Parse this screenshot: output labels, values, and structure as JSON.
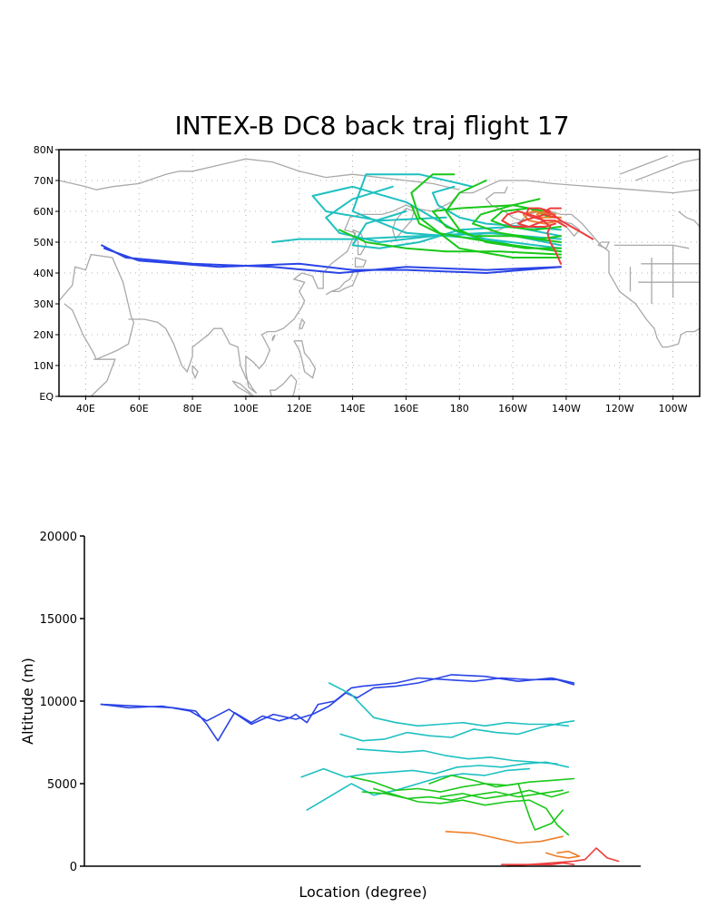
{
  "title": "INTEX-B DC8 back traj flight 17",
  "colors": {
    "land": "#a9a9a9",
    "grid": "#9a9a9a",
    "axis": "#000000",
    "blue": "#2a44e6",
    "cyan": "#1fc0c0",
    "green": "#19c819",
    "orange": "#ee7f2a",
    "red": "#ee3c3c"
  },
  "chart_data": [
    {
      "type": "line",
      "subtype": "map",
      "x_ticks": [
        "40E",
        "60E",
        "80E",
        "100E",
        "120E",
        "140E",
        "160E",
        "180",
        "160W",
        "140W",
        "120W",
        "100W"
      ],
      "y_ticks": [
        "EQ",
        "10N",
        "20N",
        "30N",
        "40N",
        "50N",
        "60N",
        "70N",
        "80N"
      ],
      "xlim": [
        30,
        270
      ],
      "ylim": [
        0,
        80
      ],
      "grid": true,
      "series": [
        {
          "color": "blue",
          "x": [
            218,
            190,
            160,
            140,
            120,
            90,
            60,
            47
          ],
          "y": [
            42,
            40,
            41,
            41,
            43,
            42,
            44,
            48
          ]
        },
        {
          "color": "blue",
          "x": [
            218,
            190,
            160,
            135,
            110,
            80,
            55,
            46
          ],
          "y": [
            42,
            41,
            42,
            40,
            42,
            43,
            45,
            49
          ]
        },
        {
          "color": "cyan",
          "x": [
            218,
            200,
            180,
            160,
            140,
            125,
            130,
            150,
            175
          ],
          "y": [
            47,
            49,
            53,
            63,
            68,
            65,
            60,
            57,
            58
          ]
        },
        {
          "color": "cyan",
          "x": [
            218,
            190,
            160,
            140,
            145,
            165,
            185
          ],
          "y": [
            48,
            51,
            53,
            60,
            72,
            72,
            68
          ]
        },
        {
          "color": "cyan",
          "x": [
            218,
            195,
            170,
            150,
            135,
            130,
            140,
            155
          ],
          "y": [
            49,
            53,
            52,
            50,
            53,
            58,
            64,
            68
          ]
        },
        {
          "color": "cyan",
          "x": [
            218,
            190,
            165,
            140,
            120,
            110
          ],
          "y": [
            51,
            53,
            52,
            51,
            51,
            50
          ]
        },
        {
          "color": "cyan",
          "x": [
            218,
            200,
            180,
            165,
            150,
            140,
            145,
            160
          ],
          "y": [
            52,
            55,
            54,
            50,
            48,
            49,
            56,
            60
          ]
        },
        {
          "color": "cyan",
          "x": [
            218,
            205,
            190,
            180,
            172,
            170,
            178
          ],
          "y": [
            54,
            55,
            56,
            58,
            62,
            66,
            68
          ]
        },
        {
          "color": "green",
          "x": [
            218,
            200,
            180,
            165,
            162,
            170,
            178
          ],
          "y": [
            45,
            45,
            48,
            58,
            66,
            72,
            72
          ]
        },
        {
          "color": "green",
          "x": [
            218,
            195,
            175,
            160,
            145,
            135
          ],
          "y": [
            46,
            47,
            47,
            48,
            50,
            54
          ]
        },
        {
          "color": "green",
          "x": [
            218,
            200,
            185,
            172,
            165,
            162
          ],
          "y": [
            47,
            49,
            51,
            53,
            56,
            62
          ]
        },
        {
          "color": "green",
          "x": [
            218,
            205,
            190,
            180,
            175,
            180,
            190
          ],
          "y": [
            48,
            48,
            50,
            54,
            60,
            66,
            70
          ]
        },
        {
          "color": "green",
          "x": [
            218,
            200,
            185,
            175,
            170,
            180,
            200,
            210
          ],
          "y": [
            50,
            52,
            52,
            55,
            60,
            61,
            62,
            64
          ]
        },
        {
          "color": "green",
          "x": [
            218,
            210,
            195,
            185,
            188,
            200,
            212
          ],
          "y": [
            52,
            51,
            53,
            56,
            59,
            62,
            60
          ]
        },
        {
          "color": "green",
          "x": [
            218,
            208,
            198,
            192,
            196,
            206,
            214
          ],
          "y": [
            55,
            54,
            55,
            57,
            60,
            61,
            58
          ]
        },
        {
          "color": "orange",
          "x": [
            218,
            212,
            206,
            204,
            208,
            214
          ],
          "y": [
            57,
            56,
            57,
            59,
            60,
            59
          ]
        },
        {
          "color": "orange",
          "x": [
            218,
            214,
            210,
            209,
            212,
            216
          ],
          "y": [
            58,
            58,
            58,
            59,
            60,
            59
          ]
        },
        {
          "color": "red",
          "x": [
            218,
            216,
            214,
            213,
            214,
            210,
            202,
            198,
            196,
            200,
            206,
            212
          ],
          "y": [
            43,
            47,
            50,
            53,
            55,
            58,
            60,
            59,
            57,
            55,
            55,
            57
          ]
        },
        {
          "color": "red",
          "x": [
            220,
            216,
            212,
            208,
            205,
            206,
            210,
            214
          ],
          "y": [
            55,
            57,
            57,
            58,
            59,
            61,
            61,
            60
          ]
        },
        {
          "color": "red",
          "x": [
            216,
            212,
            208,
            204,
            202,
            206,
            212,
            216
          ],
          "y": [
            58,
            59,
            58,
            57,
            56,
            55,
            55,
            56
          ]
        },
        {
          "color": "red",
          "x": [
            230,
            226,
            222,
            218,
            215,
            212,
            214,
            218
          ],
          "y": [
            51,
            53,
            55,
            57,
            59,
            60,
            61,
            61
          ]
        }
      ]
    },
    {
      "type": "line",
      "xlabel": "Location (degree)",
      "ylabel": "Altitude (m)",
      "y_ticks": [
        0,
        5000,
        10000,
        15000,
        20000
      ],
      "ylim": [
        0,
        20000
      ],
      "xlim": [
        0,
        100
      ],
      "x_ticks_shown": false,
      "series": [
        {
          "color": "blue",
          "x": [
            3,
            10,
            16,
            20,
            22,
            24,
            27,
            30,
            32,
            35,
            37,
            38,
            40,
            42,
            45,
            48,
            50,
            53,
            56,
            60,
            65,
            70,
            75,
            80,
            85,
            88
          ],
          "y": [
            9800,
            9700,
            9600,
            9400,
            8600,
            7600,
            9300,
            8700,
            9100,
            8800,
            9000,
            9200,
            8700,
            9800,
            10000,
            10800,
            10900,
            11000,
            11100,
            11400,
            11300,
            11200,
            11400,
            11300,
            11300,
            11000
          ]
        },
        {
          "color": "blue",
          "x": [
            3,
            8,
            14,
            19,
            22,
            26,
            30,
            34,
            38,
            41,
            44,
            47,
            49,
            52,
            56,
            60,
            66,
            72,
            78,
            84,
            88
          ],
          "y": [
            9800,
            9600,
            9700,
            9400,
            8800,
            9500,
            8600,
            9200,
            8900,
            9200,
            9700,
            10500,
            10200,
            10800,
            10900,
            11100,
            11600,
            11500,
            11200,
            11400,
            11100
          ]
        },
        {
          "color": "cyan",
          "x": [
            44,
            48,
            52,
            56,
            60,
            64,
            68,
            72,
            76,
            80,
            84,
            87
          ],
          "y": [
            11100,
            10400,
            9000,
            8700,
            8500,
            8600,
            8700,
            8500,
            8700,
            8600,
            8600,
            8500
          ]
        },
        {
          "color": "cyan",
          "x": [
            46,
            50,
            54,
            58,
            62,
            66,
            70,
            74,
            78,
            82,
            86,
            88
          ],
          "y": [
            8000,
            7600,
            7700,
            8100,
            7900,
            7800,
            8300,
            8100,
            8000,
            8400,
            8700,
            8800
          ]
        },
        {
          "color": "cyan",
          "x": [
            49,
            53,
            57,
            61,
            65,
            69,
            73,
            77,
            81,
            85
          ],
          "y": [
            7100,
            7000,
            6900,
            7000,
            6700,
            6500,
            6600,
            6400,
            6300,
            6200
          ]
        },
        {
          "color": "cyan",
          "x": [
            39,
            43,
            47,
            51,
            55,
            59,
            63,
            67,
            71,
            75,
            79,
            83,
            87
          ],
          "y": [
            5400,
            5900,
            5400,
            5600,
            5700,
            5800,
            5600,
            6000,
            6100,
            6000,
            6200,
            6300,
            6000
          ]
        },
        {
          "color": "cyan",
          "x": [
            40,
            44,
            48,
            52,
            56,
            60,
            64,
            68,
            72,
            76,
            80
          ],
          "y": [
            3400,
            4200,
            5000,
            4300,
            4600,
            5000,
            5400,
            5600,
            5500,
            5800,
            5900
          ]
        },
        {
          "color": "green",
          "x": [
            48,
            52,
            56,
            60,
            64,
            68,
            72,
            76,
            80,
            84,
            88
          ],
          "y": [
            5400,
            5100,
            4600,
            4700,
            4500,
            4800,
            5000,
            4900,
            5100,
            5200,
            5300
          ]
        },
        {
          "color": "green",
          "x": [
            50,
            54,
            58,
            62,
            66,
            70,
            74,
            78,
            82,
            86
          ],
          "y": [
            4500,
            4400,
            4100,
            4200,
            4000,
            4300,
            4500,
            4200,
            4400,
            4600
          ]
        },
        {
          "color": "green",
          "x": [
            52,
            56,
            60,
            64,
            68,
            72,
            76,
            80,
            83,
            85,
            87
          ],
          "y": [
            4700,
            4300,
            3900,
            3800,
            4000,
            3700,
            3900,
            4000,
            3500,
            2500,
            1900
          ]
        },
        {
          "color": "green",
          "x": [
            62,
            66,
            70,
            74,
            78,
            80,
            81,
            84,
            86
          ],
          "y": [
            5000,
            5500,
            5200,
            4800,
            5000,
            3000,
            2200,
            2600,
            3400
          ]
        },
        {
          "color": "green",
          "x": [
            64,
            68,
            72,
            76,
            80,
            84,
            87
          ],
          "y": [
            4200,
            4400,
            4100,
            4300,
            4600,
            4200,
            4500
          ]
        },
        {
          "color": "orange",
          "x": [
            65,
            70,
            74,
            78,
            82,
            86
          ],
          "y": [
            2100,
            2000,
            1700,
            1400,
            1500,
            1800
          ]
        },
        {
          "color": "orange",
          "x": [
            83,
            85,
            87,
            89,
            87,
            85
          ],
          "y": [
            800,
            600,
            500,
            600,
            900,
            800
          ]
        },
        {
          "color": "red",
          "x": [
            75,
            80,
            84,
            88,
            90,
            92,
            94,
            96
          ],
          "y": [
            100,
            100,
            200,
            300,
            400,
            1100,
            500,
            300
          ]
        },
        {
          "color": "red",
          "x": [
            76,
            80,
            84,
            86,
            88
          ],
          "y": [
            0,
            100,
            100,
            200,
            100
          ]
        }
      ]
    }
  ]
}
